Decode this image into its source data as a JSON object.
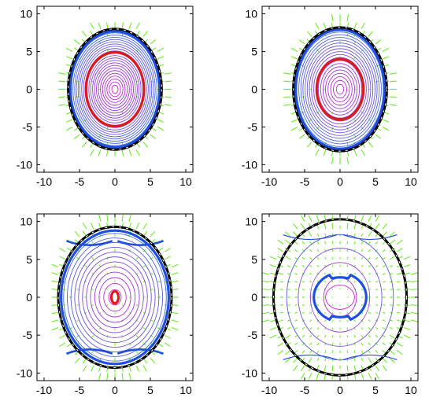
{
  "chart_data": [
    {
      "type": "contour",
      "panel": "top-left",
      "xlim": [
        -11,
        11
      ],
      "ylim": [
        -11,
        11
      ],
      "xticks": [
        "-10",
        "-5",
        "0",
        "5",
        "10"
      ],
      "yticks": [
        "10",
        "5",
        "0",
        "-5",
        "-10"
      ],
      "grid": false,
      "legend": "none",
      "boundary": {
        "semi_x": 6.6,
        "semi_y": 8.0
      },
      "bold_contours": [
        {
          "color": "#e01818",
          "semi_x": 4.1,
          "semi_y": 4.9
        },
        {
          "color": "#1f4fe0",
          "semi_x": 6.3,
          "semi_y": 7.7
        }
      ],
      "contour_levels": 22,
      "lobes": false,
      "quiver_density": 0.5
    },
    {
      "type": "contour",
      "panel": "top-right",
      "xlim": [
        -11,
        11
      ],
      "ylim": [
        -11,
        11
      ],
      "xticks": [
        "-10",
        "-5",
        "0",
        "5",
        "10"
      ],
      "yticks": [
        "10",
        "5",
        "0",
        "-5",
        "-10"
      ],
      "grid": false,
      "legend": "none",
      "boundary": {
        "semi_x": 6.6,
        "semi_y": 8.2
      },
      "bold_contours": [
        {
          "color": "#e01818",
          "semi_x": 3.3,
          "semi_y": 4.0
        },
        {
          "color": "#1f4fe0",
          "semi_x": 6.3,
          "semi_y": 7.9
        }
      ],
      "contour_levels": 18,
      "lobes": false,
      "quiver_density": 0.6
    },
    {
      "type": "contour",
      "panel": "bottom-left",
      "xlim": [
        -11,
        11
      ],
      "ylim": [
        -11,
        11
      ],
      "xticks": [
        "-10",
        "-5",
        "0",
        "5",
        "10"
      ],
      "yticks": [
        "10",
        "5",
        "0",
        "-5",
        "-10"
      ],
      "grid": false,
      "legend": "none",
      "boundary": {
        "semi_x": 8.0,
        "semi_y": 9.3
      },
      "bold_contours": [
        {
          "color": "#e01818",
          "semi_x": 0.5,
          "semi_y": 0.8
        },
        {
          "color": "#1f4fe0",
          "semi_x": 7.6,
          "semi_y": 8.8
        }
      ],
      "contour_levels": 12,
      "lobes": true,
      "quiver_density": 0.7
    },
    {
      "type": "contour",
      "panel": "bottom-right",
      "xlim": [
        -11,
        11
      ],
      "ylim": [
        -11,
        11
      ],
      "xticks": [
        "-10",
        "-5",
        "0",
        "5",
        "10"
      ],
      "yticks": [
        "10",
        "5",
        "0",
        "-5",
        "-10"
      ],
      "grid": false,
      "legend": "none",
      "boundary": {
        "semi_x": 9.4,
        "semi_y": 10.3
      },
      "bold_contours": [
        {
          "color": "#1f4fe0",
          "semi_x": 3.7,
          "semi_y": 3.2,
          "dumbbell": true
        }
      ],
      "contour_levels": 4,
      "lobes": true,
      "quiver_density": 1.0
    }
  ],
  "colors": {
    "boundary": "#000000",
    "boundary_dash": "#ffffff",
    "bold_red": "#e01818",
    "bold_blue": "#1f4fe0",
    "contour_inner": "#d020d0",
    "contour_outer": "#3a6ee0",
    "quiver": "#66ee22"
  }
}
